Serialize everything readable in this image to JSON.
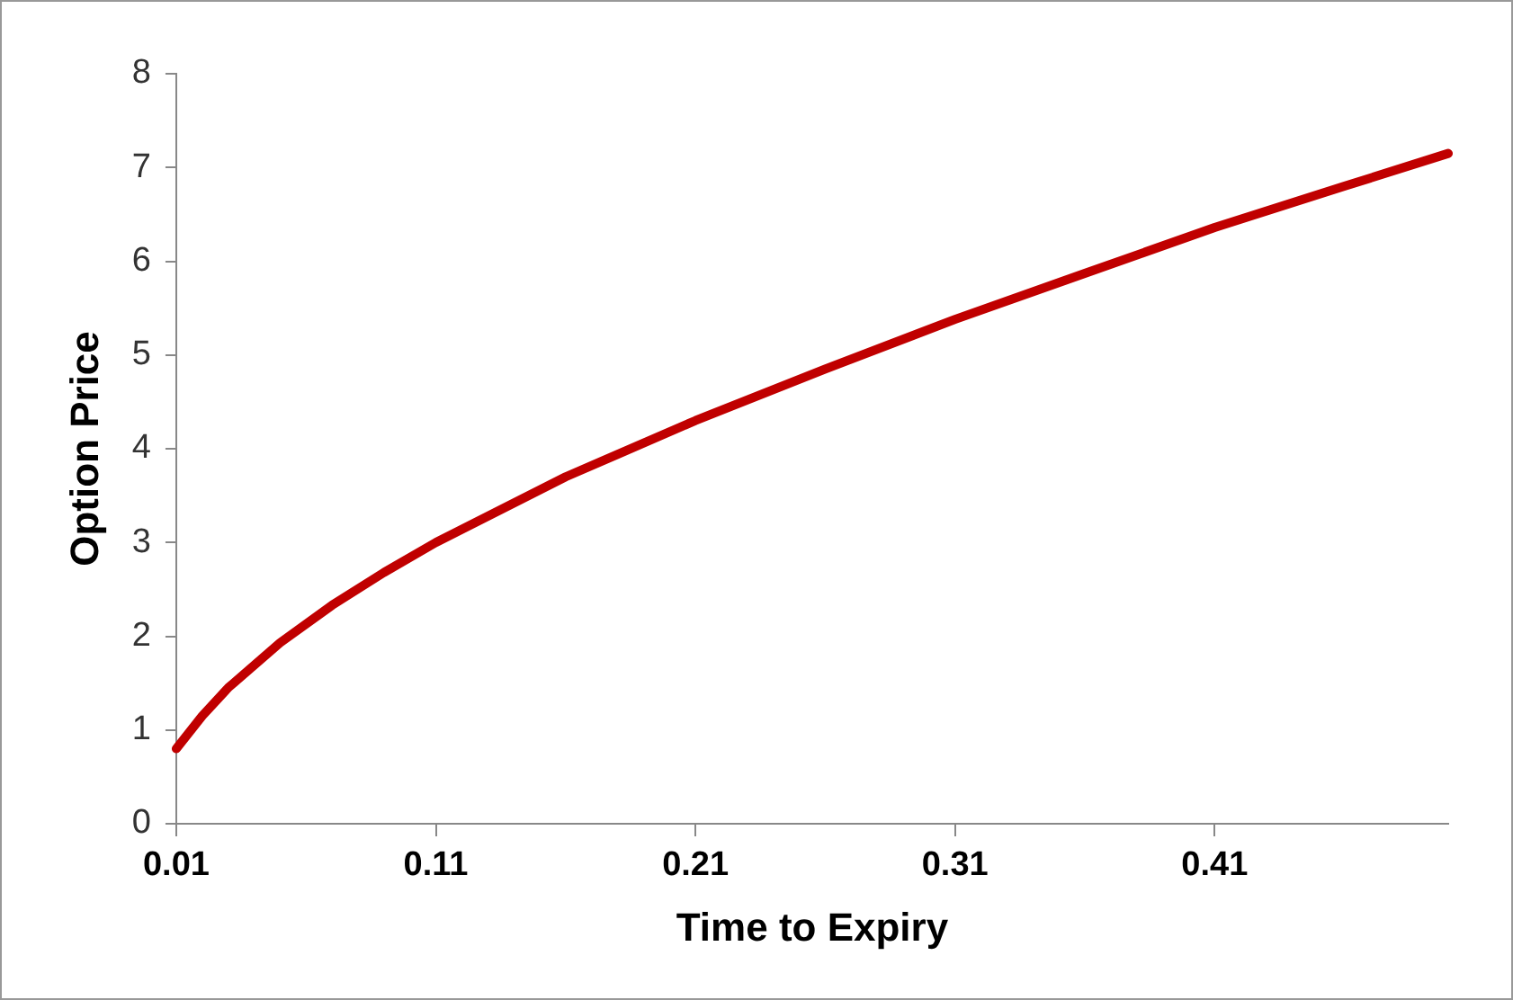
{
  "chart_data": {
    "type": "line",
    "xlabel": "Time to Expiry",
    "ylabel": "Option Price",
    "x": [
      0.01,
      0.02,
      0.03,
      0.05,
      0.07,
      0.09,
      0.11,
      0.16,
      0.21,
      0.26,
      0.31,
      0.36,
      0.41,
      0.46,
      0.5
    ],
    "series": [
      {
        "color": "#c00000",
        "values": [
          0.8,
          1.15,
          1.45,
          1.93,
          2.33,
          2.68,
          3.0,
          3.7,
          4.3,
          4.85,
          5.38,
          5.87,
          6.36,
          6.8,
          7.15
        ]
      }
    ],
    "xlim": [
      0.01,
      0.5
    ],
    "xticks": [
      0.01,
      0.11,
      0.21,
      0.31,
      0.41
    ],
    "ylim": [
      0,
      8
    ],
    "yticks": [
      0,
      1,
      2,
      3,
      4,
      5,
      6,
      7,
      8
    ],
    "grid": false,
    "legend": false,
    "marker": "none",
    "line_style": "solid"
  }
}
